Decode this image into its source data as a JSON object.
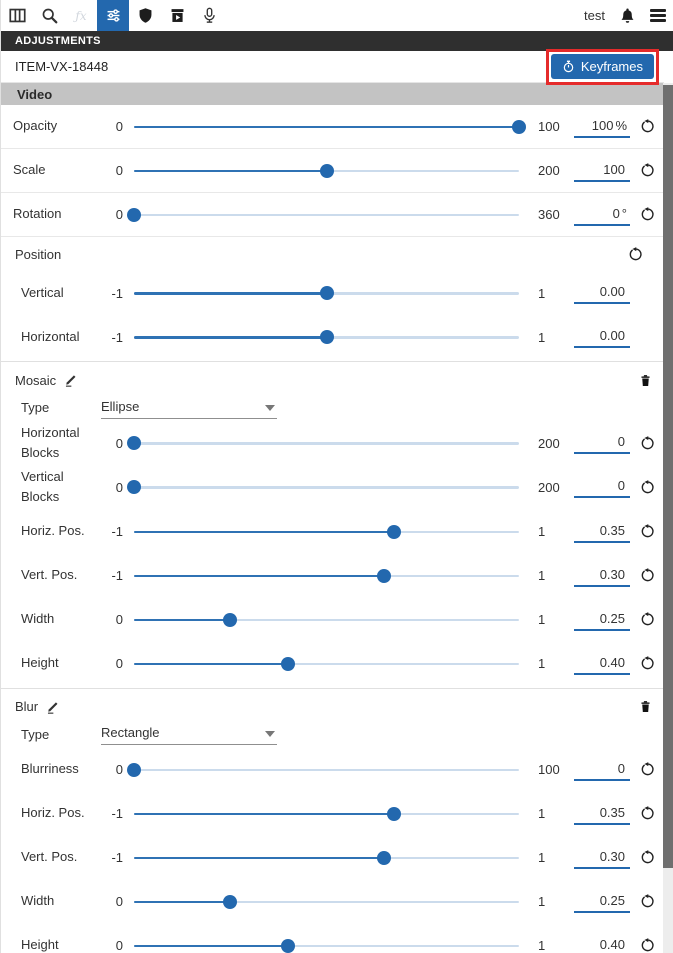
{
  "colors": {
    "accent": "#2368ae",
    "highlight_red": "#e52b2b",
    "slider_fill": "#2f72b4",
    "slider_track": "#cbdbec"
  },
  "toolbar": {
    "icon_names": [
      "columns-icon",
      "search-icon",
      "effects-icon",
      "sliders-icon",
      "shield-icon",
      "media-archive-icon",
      "microphone-icon"
    ],
    "active_icon": "sliders-icon",
    "user_label": "test"
  },
  "panel_header": "ADJUSTMENTS",
  "item_bar": {
    "item_id": "ITEM-VX-18448",
    "keyframes_button": "Keyframes"
  },
  "video": {
    "title": "Video",
    "rows": [
      {
        "label": "Opacity",
        "min": "0",
        "max": "100",
        "value": "100",
        "unit": "%",
        "pos": 1,
        "reset": true
      },
      {
        "label": "Scale",
        "min": "0",
        "max": "200",
        "value": "100",
        "unit": "",
        "pos": 0.5,
        "reset": true
      },
      {
        "label": "Rotation",
        "min": "0",
        "max": "360",
        "value": "0",
        "unit": "°",
        "pos": 0,
        "reset": true
      }
    ]
  },
  "position": {
    "title": "Position",
    "rows": [
      {
        "label": "Vertical",
        "min": "-1",
        "max": "1",
        "value": "0.00",
        "unit": "",
        "pos": 0.5,
        "reset": false
      },
      {
        "label": "Horizontal",
        "min": "-1",
        "max": "1",
        "value": "0.00",
        "unit": "",
        "pos": 0.5,
        "reset": false
      }
    ]
  },
  "mosaic": {
    "title": "Mosaic",
    "type_label": "Type",
    "type_value": "Ellipse",
    "rows": [
      {
        "label": "Horizontal Blocks",
        "min": "0",
        "max": "200",
        "value": "0",
        "unit": "",
        "pos": 0,
        "reset": true
      },
      {
        "label": "Vertical Blocks",
        "min": "0",
        "max": "200",
        "value": "0",
        "unit": "",
        "pos": 0,
        "reset": true
      },
      {
        "label": "Horiz. Pos.",
        "min": "-1",
        "max": "1",
        "value": "0.35",
        "unit": "",
        "pos": 0.675,
        "reset": true
      },
      {
        "label": "Vert. Pos.",
        "min": "-1",
        "max": "1",
        "value": "0.30",
        "unit": "",
        "pos": 0.65,
        "reset": true
      },
      {
        "label": "Width",
        "min": "0",
        "max": "1",
        "value": "0.25",
        "unit": "",
        "pos": 0.25,
        "reset": true
      },
      {
        "label": "Height",
        "min": "0",
        "max": "1",
        "value": "0.40",
        "unit": "",
        "pos": 0.4,
        "reset": true
      }
    ]
  },
  "blur": {
    "title": "Blur",
    "type_label": "Type",
    "type_value": "Rectangle",
    "rows": [
      {
        "label": "Blurriness",
        "min": "0",
        "max": "100",
        "value": "0",
        "unit": "",
        "pos": 0,
        "reset": true
      },
      {
        "label": "Horiz. Pos.",
        "min": "-1",
        "max": "1",
        "value": "0.35",
        "unit": "",
        "pos": 0.675,
        "reset": true
      },
      {
        "label": "Vert. Pos.",
        "min": "-1",
        "max": "1",
        "value": "0.30",
        "unit": "",
        "pos": 0.65,
        "reset": true
      },
      {
        "label": "Width",
        "min": "0",
        "max": "1",
        "value": "0.25",
        "unit": "",
        "pos": 0.25,
        "reset": true
      },
      {
        "label": "Height",
        "min": "0",
        "max": "1",
        "value": "0.40",
        "unit": "",
        "pos": 0.4,
        "reset": true
      }
    ]
  }
}
